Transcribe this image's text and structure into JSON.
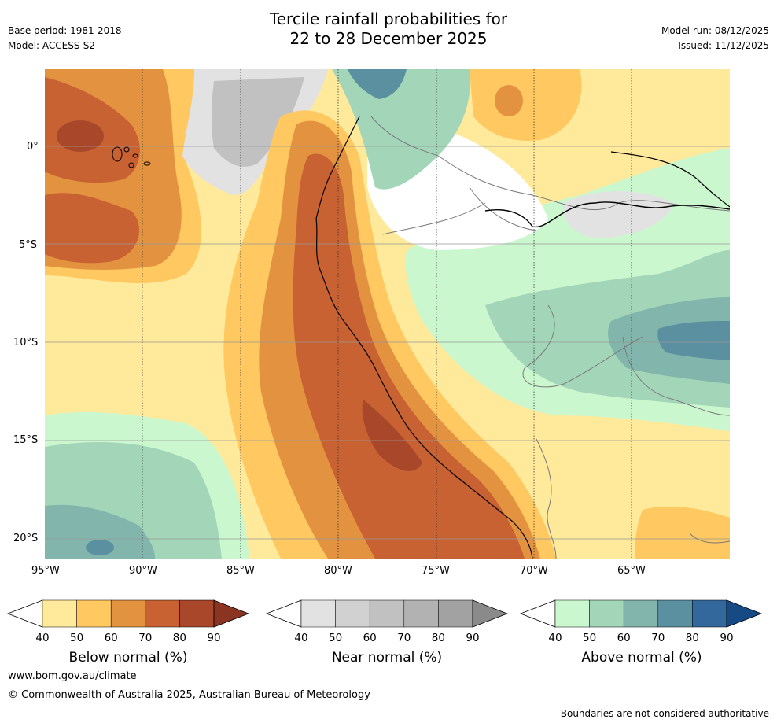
{
  "title_line1": "Tercile rainfall probabilities for",
  "title_line2": "22 to 28 December 2025",
  "base_period": "Base period: 1981-2018",
  "model": "Model: ACCESS-S2",
  "model_run": "Model run: 08/12/2025",
  "issued": "Issued: 11/12/2025",
  "lat_ticks": [
    "0°",
    "5°S",
    "10°S",
    "15°S",
    "20°S"
  ],
  "lon_ticks": [
    "95°W",
    "90°W",
    "85°W",
    "80°W",
    "75°W",
    "70°W",
    "65°W"
  ],
  "colorbars": [
    {
      "title": "Below normal (%)",
      "labels": [
        "40",
        "50",
        "60",
        "70",
        "80",
        "90"
      ],
      "colors": [
        "#ffe99b",
        "#ffc860",
        "#e39340",
        "#c96232",
        "#a9472a",
        "#8a3421"
      ]
    },
    {
      "title": "Near normal (%)",
      "labels": [
        "40",
        "50",
        "60",
        "70",
        "80",
        "90"
      ],
      "colors": [
        "#e2e2e2",
        "#d1d1d1",
        "#c1c1c1",
        "#b2b2b2",
        "#a2a2a2",
        "#8a8a8a"
      ]
    },
    {
      "title": "Above normal (%)",
      "labels": [
        "40",
        "50",
        "60",
        "70",
        "80",
        "90"
      ],
      "colors": [
        "#cbf7cf",
        "#a3d6b8",
        "#82b6ac",
        "#5a90a0",
        "#32689c",
        "#164a85"
      ]
    }
  ],
  "website": "www.bom.gov.au/climate",
  "copyright": "© Commonwealth of Australia 2025, Australian Bureau of Meteorology",
  "disclaimer": "Boundaries are not considered authoritative"
}
